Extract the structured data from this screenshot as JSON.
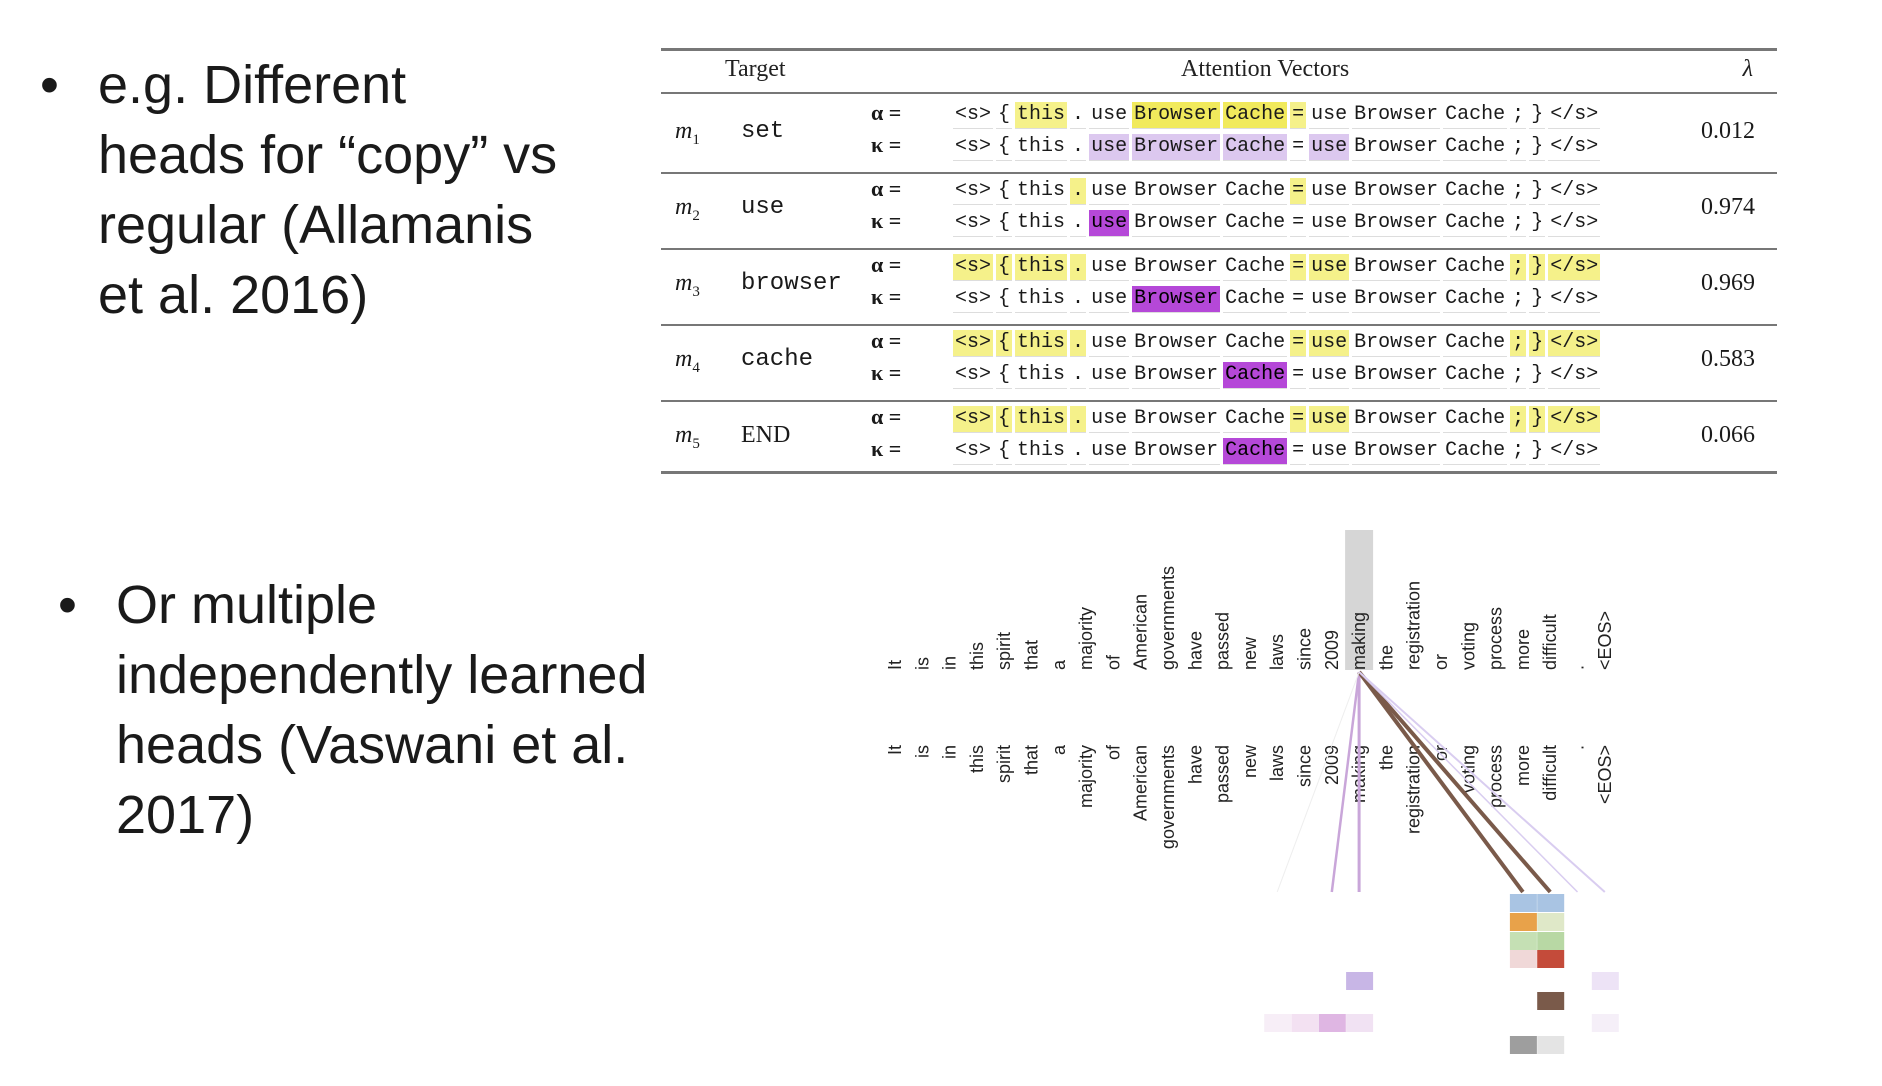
{
  "bullets": {
    "first": {
      "symbol": "•",
      "lines": [
        "e.g. Different",
        "heads for “copy” vs",
        "regular (Allamanis",
        "et al. 2016)"
      ]
    },
    "second": {
      "symbol": "•",
      "lines": [
        "Or multiple",
        "independently learned",
        "heads (Vaswani et al.",
        "2017)"
      ]
    }
  },
  "table": {
    "headers": {
      "target": "Target",
      "vectors": "Attention Vectors",
      "lambda": "λ"
    },
    "alpha_label": "α =",
    "kappa_label": "κ =",
    "tokens": [
      "<s>",
      "{",
      "this",
      ".",
      "use",
      "Browser",
      "Cache",
      "=",
      "use",
      "Browser",
      "Cache",
      ";",
      "}",
      "</s>"
    ],
    "rows": [
      {
        "m": "m",
        "sub": "1",
        "target": "set",
        "lambda": "0.012",
        "alpha": [
          0,
          0,
          1,
          0,
          0,
          2,
          2,
          1,
          0,
          0,
          0,
          0,
          0,
          0
        ],
        "kappa": [
          0,
          0,
          0,
          0,
          3,
          3,
          3,
          0,
          3,
          0,
          0,
          0,
          0,
          0
        ]
      },
      {
        "m": "m",
        "sub": "2",
        "target": "use",
        "lambda": "0.974",
        "alpha": [
          0,
          0,
          0,
          1,
          0,
          0,
          0,
          1,
          0,
          0,
          0,
          0,
          0,
          0
        ],
        "kappa": [
          0,
          0,
          0,
          0,
          5,
          0,
          0,
          0,
          0,
          0,
          0,
          0,
          0,
          0
        ]
      },
      {
        "m": "m",
        "sub": "3",
        "target": "browser",
        "lambda": "0.969",
        "alpha": [
          1,
          1,
          1,
          1,
          0,
          0,
          0,
          1,
          1,
          0,
          0,
          1,
          1,
          1
        ],
        "kappa": [
          0,
          0,
          0,
          0,
          0,
          5,
          0,
          0,
          0,
          0,
          0,
          0,
          0,
          0
        ]
      },
      {
        "m": "m",
        "sub": "4",
        "target": "cache",
        "lambda": "0.583",
        "alpha": [
          1,
          1,
          1,
          1,
          0,
          0,
          0,
          1,
          1,
          0,
          0,
          1,
          1,
          1
        ],
        "kappa": [
          0,
          0,
          0,
          0,
          0,
          0,
          5,
          0,
          0,
          0,
          0,
          0,
          0,
          0
        ]
      },
      {
        "m": "m",
        "sub": "5",
        "target": "END",
        "lambda": "0.066",
        "alpha": [
          1,
          1,
          1,
          1,
          0,
          0,
          0,
          1,
          1,
          0,
          0,
          1,
          1,
          1
        ],
        "kappa": [
          0,
          0,
          0,
          0,
          0,
          0,
          5,
          0,
          0,
          0,
          0,
          0,
          0,
          0
        ]
      }
    ],
    "colors": {
      "yellow": "#f5f18a",
      "yellow_strong": "#f1ea5c",
      "purple_light": "#dcc8ef",
      "purple": "#b548d8"
    }
  },
  "viz": {
    "words": [
      "It",
      "is",
      "in",
      "this",
      "spirit",
      "that",
      "a",
      "majority",
      "of",
      "American",
      "governments",
      "have",
      "passed",
      "new",
      "laws",
      "since",
      "2009",
      "making",
      "the",
      "registration",
      "or",
      "voting",
      "process",
      "more",
      "difficult",
      ".",
      "<EOS>"
    ],
    "focus_word": "making",
    "colors": {
      "focus_bg": "#d6d6d6",
      "brown": "#7a5a4a",
      "lilac": "#c9a6d9",
      "lavender": "#d9cdf0"
    }
  }
}
